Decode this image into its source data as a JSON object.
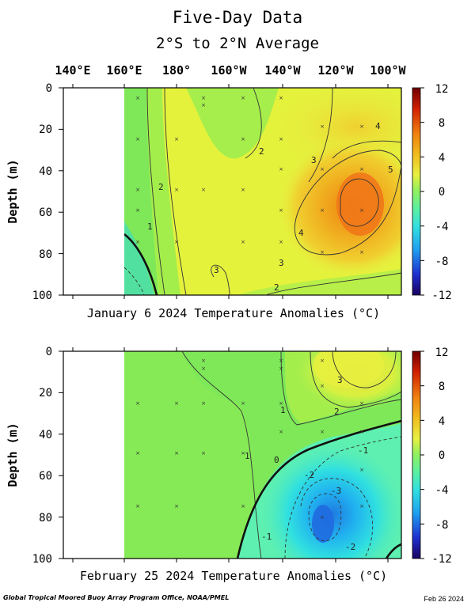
{
  "title": "Five-Day Data",
  "subtitle": "2°S to 2°N Average",
  "x_tick_labels": [
    "140°E",
    "160°E",
    "180°",
    "160°W",
    "140°W",
    "120°W",
    "100°W"
  ],
  "y_axis_label": "Depth (m)",
  "y_tick_labels": [
    "0",
    "20",
    "40",
    "60",
    "80",
    "100"
  ],
  "colorbar_tick_labels": [
    "12",
    "8",
    "4",
    "0",
    "-4",
    "-8",
    "-12"
  ],
  "footer_left": "Global Tropical Moored Buoy Array Program Office, NOAA/PMEL",
  "footer_right": "Feb 26 2024",
  "colors": {
    "scale": [
      "#1a0060",
      "#1f2fd0",
      "#1fa0f0",
      "#30e0e0",
      "#5ef0a0",
      "#8ef060",
      "#e8f040",
      "#f0c020",
      "#f08010",
      "#d02000",
      "#700000"
    ],
    "no_data": "#ffffff"
  },
  "chart_data": [
    {
      "type": "heatmap",
      "caption": "January 6 2024 Temperature Anomalies (°C)",
      "x_range": [
        "140°E",
        "100°W"
      ],
      "ylim": [
        100,
        0
      ],
      "color_range": [
        -12,
        12
      ],
      "data_coverage_start": "160°E",
      "contour_labels": [
        "1",
        "2",
        "3",
        "2",
        "3",
        "4",
        "4",
        "5",
        "3",
        "2"
      ],
      "features": {
        "max_anomaly": 6,
        "max_location": {
          "longitude": "~110°W",
          "depth": 60
        },
        "western_surface": 1,
        "western_deep": -1
      }
    },
    {
      "type": "heatmap",
      "caption": "February 25 2024 Temperature Anomalies (°C)",
      "x_range": [
        "140°E",
        "100°W"
      ],
      "ylim": [
        100,
        0
      ],
      "color_range": [
        -12,
        12
      ],
      "data_coverage_start": "160°E",
      "contour_labels": [
        "3",
        "2",
        "1",
        "1",
        "0",
        "-1",
        "-2",
        "-3",
        "-1",
        "-2"
      ],
      "features": {
        "min_anomaly": -6,
        "min_location": {
          "longitude": "~120°W",
          "depth": 80
        },
        "eastern_surface_max": 3
      }
    }
  ]
}
